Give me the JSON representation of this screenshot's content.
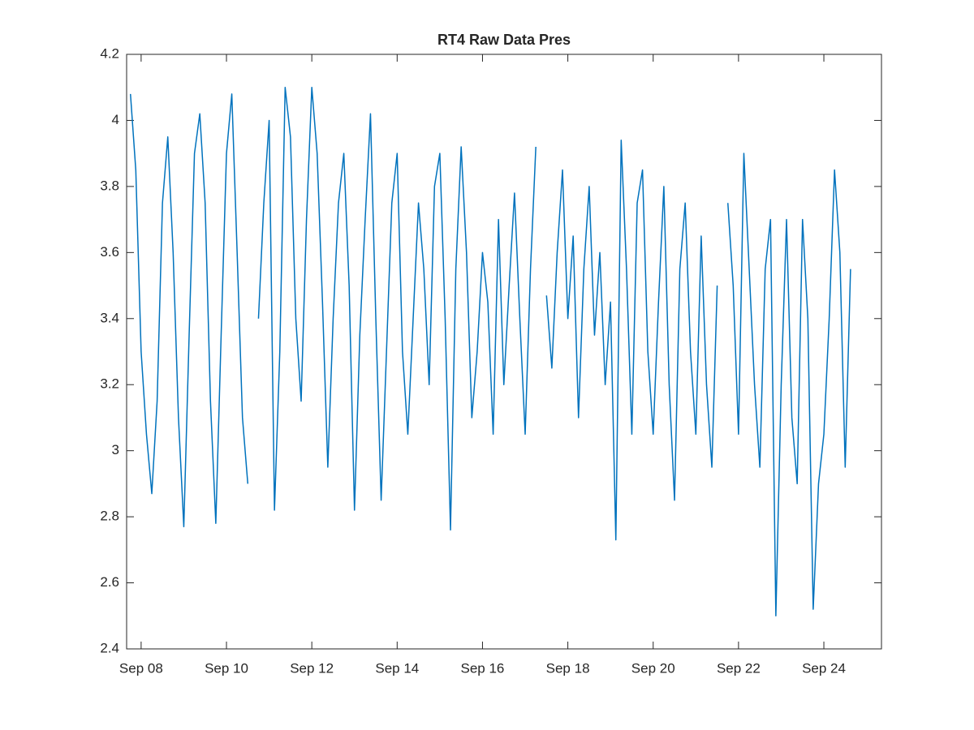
{
  "chart_data": {
    "type": "line",
    "title": "RT4 Raw Data Pres",
    "color": "#0072bd",
    "x": [
      7.75,
      7.875,
      8,
      8.125,
      8.25,
      8.375,
      8.5,
      8.625,
      8.75,
      8.875,
      9,
      9.125,
      9.25,
      9.375,
      9.5,
      9.625,
      9.75,
      9.875,
      10,
      10.125,
      10.25,
      10.375,
      10.5,
      10.625,
      10.75,
      10.875,
      11,
      11.125,
      11.25,
      11.375,
      11.5,
      11.625,
      11.75,
      11.875,
      12,
      12.125,
      12.25,
      12.375,
      12.5,
      12.625,
      12.75,
      12.875,
      13,
      13.125,
      13.25,
      13.375,
      13.5,
      13.625,
      13.75,
      13.875,
      14,
      14.125,
      14.25,
      14.375,
      14.5,
      14.625,
      14.75,
      14.875,
      15,
      15.125,
      15.25,
      15.375,
      15.5,
      15.625,
      15.75,
      15.875,
      16,
      16.125,
      16.25,
      16.375,
      16.5,
      16.625,
      16.75,
      16.875,
      17,
      17.125,
      17.25,
      17.375,
      17.5,
      17.625,
      17.75,
      17.875,
      18,
      18.125,
      18.25,
      18.375,
      18.5,
      18.625,
      18.75,
      18.875,
      19,
      19.125,
      19.25,
      19.375,
      19.5,
      19.625,
      19.75,
      19.875,
      20,
      20.125,
      20.25,
      20.375,
      20.5,
      20.625,
      20.75,
      20.875,
      21,
      21.125,
      21.25,
      21.375,
      21.5,
      21.625,
      21.75,
      21.875,
      22,
      22.125,
      22.25,
      22.375,
      22.5,
      22.625,
      22.75,
      22.875,
      23,
      23.125,
      23.25,
      23.375,
      23.5,
      23.625,
      23.75,
      23.875,
      24,
      24.125,
      24.25,
      24.375,
      24.5,
      24.625
    ],
    "values": [
      4.08,
      3.85,
      3.3,
      3.05,
      2.87,
      3.15,
      3.75,
      3.95,
      3.6,
      3.1,
      2.77,
      3.35,
      3.9,
      4.02,
      3.75,
      3.15,
      2.78,
      3.35,
      3.9,
      4.08,
      3.6,
      3.1,
      2.9,
      null,
      3.4,
      3.75,
      4.0,
      2.82,
      3.3,
      4.1,
      3.95,
      3.4,
      3.15,
      3.7,
      4.1,
      3.9,
      3.45,
      2.95,
      3.4,
      3.75,
      3.9,
      3.5,
      2.82,
      3.35,
      3.7,
      4.02,
      3.4,
      2.85,
      3.3,
      3.75,
      3.9,
      3.3,
      3.05,
      3.4,
      3.75,
      3.55,
      3.2,
      3.8,
      3.9,
      3.4,
      2.76,
      3.55,
      3.92,
      3.6,
      3.1,
      3.3,
      3.6,
      3.45,
      3.05,
      3.7,
      3.2,
      3.5,
      3.78,
      3.4,
      3.05,
      3.55,
      3.92,
      null,
      3.47,
      3.25,
      3.6,
      3.85,
      3.4,
      3.65,
      3.1,
      3.55,
      3.8,
      3.35,
      3.6,
      3.2,
      3.45,
      2.73,
      3.94,
      3.55,
      3.05,
      3.75,
      3.85,
      3.3,
      3.05,
      3.45,
      3.8,
      3.2,
      2.85,
      3.55,
      3.75,
      3.3,
      3.05,
      3.65,
      3.2,
      2.95,
      3.5,
      null,
      3.75,
      3.5,
      3.05,
      3.9,
      3.55,
      3.2,
      2.95,
      3.55,
      3.7,
      2.5,
      3.2,
      3.7,
      3.1,
      2.9,
      3.7,
      3.4,
      2.52,
      2.9,
      3.05,
      3.4,
      3.85,
      3.6,
      2.95,
      3.55
    ],
    "xlim": [
      7.66,
      25.35
    ],
    "xticks": [
      {
        "value": 8,
        "label": "Sep 08"
      },
      {
        "value": 10,
        "label": "Sep 10"
      },
      {
        "value": 12,
        "label": "Sep 12"
      },
      {
        "value": 14,
        "label": "Sep 14"
      },
      {
        "value": 16,
        "label": "Sep 16"
      },
      {
        "value": 18,
        "label": "Sep 18"
      },
      {
        "value": 20,
        "label": "Sep 20"
      },
      {
        "value": 22,
        "label": "Sep 22"
      },
      {
        "value": 24,
        "label": "Sep 24"
      }
    ],
    "ylim": [
      2.4,
      4.2
    ],
    "yticks": [
      2.4,
      2.6,
      2.8,
      3,
      3.2,
      3.4,
      3.6,
      3.8,
      4,
      4.2
    ]
  }
}
